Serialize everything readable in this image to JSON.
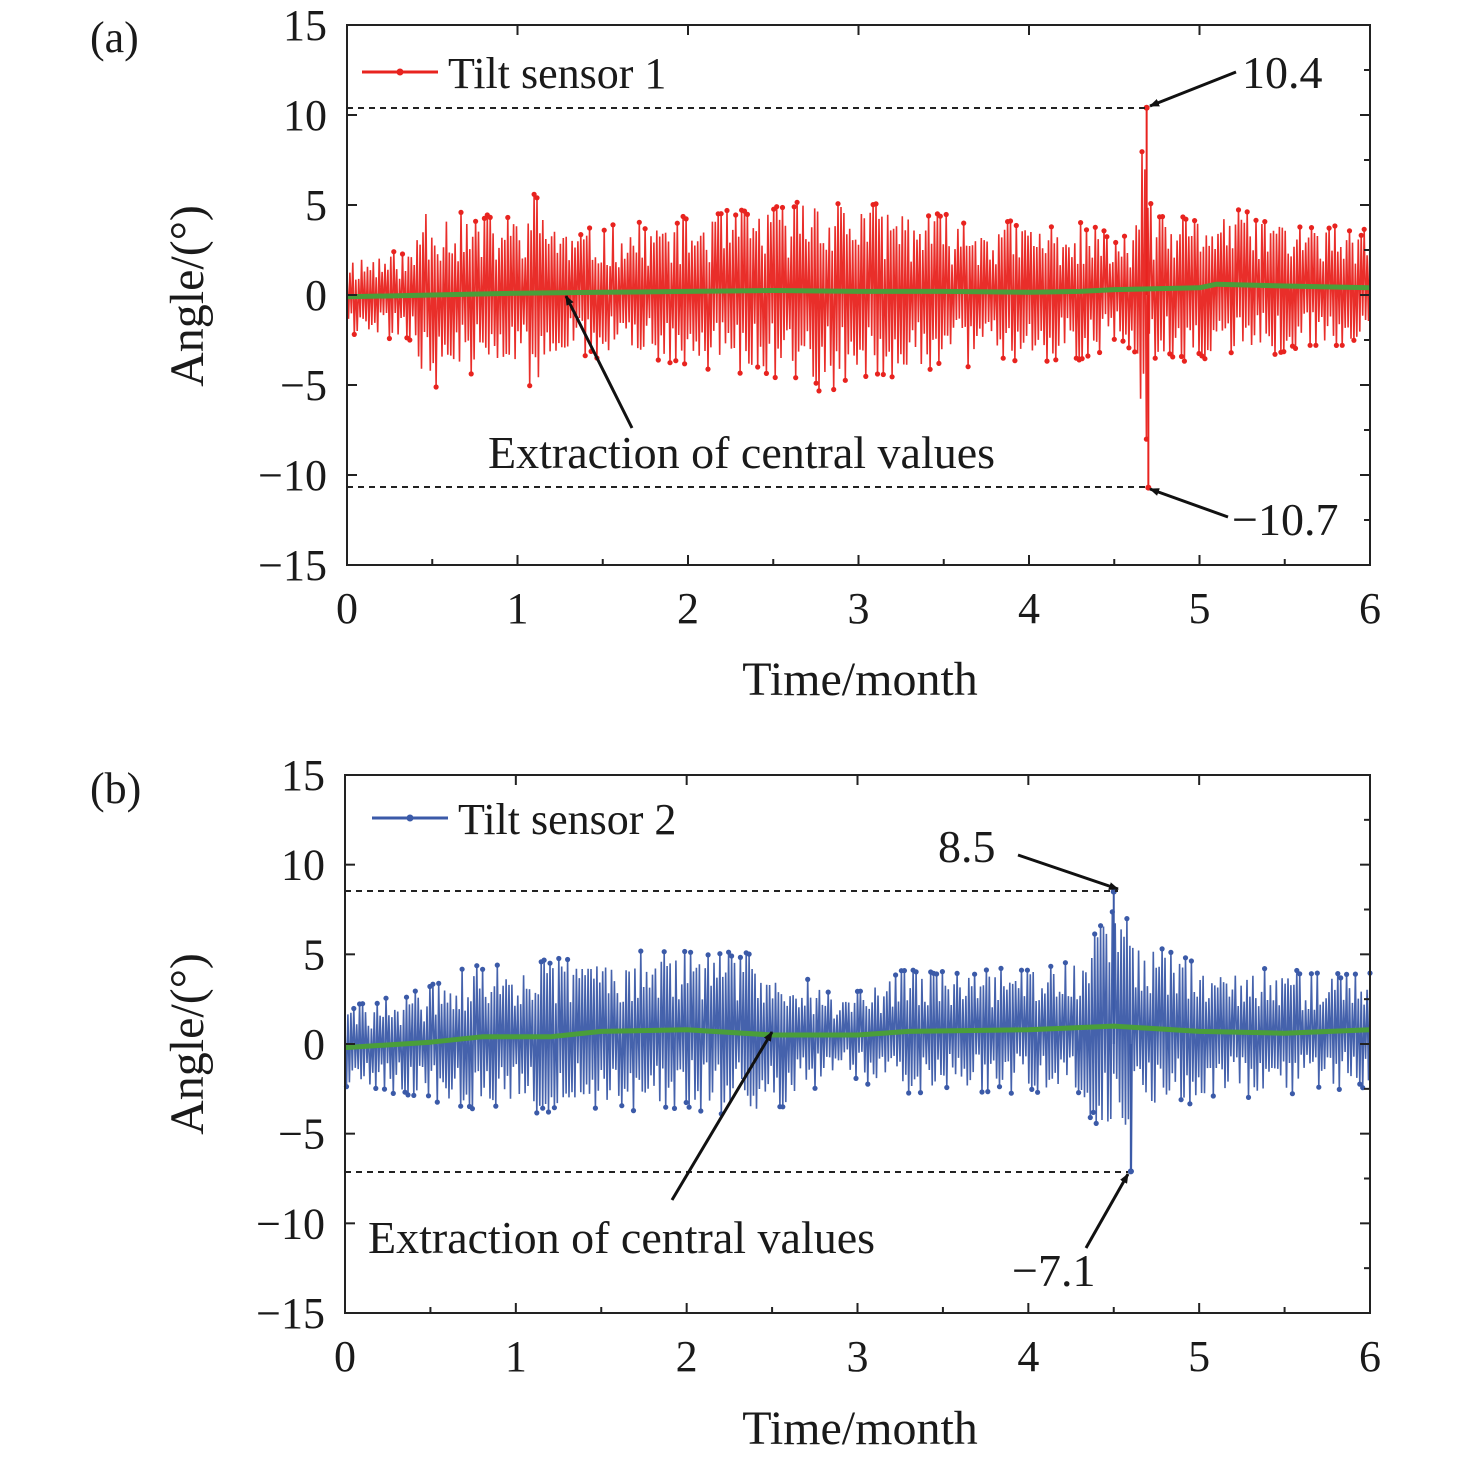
{
  "chart_data": [
    {
      "panel_label": "(a)",
      "type": "line",
      "xlabel": "Time/month",
      "ylabel": "Angle/(°)",
      "xlim": [
        0,
        6
      ],
      "ylim": [
        -15,
        15
      ],
      "xticks": [
        0,
        1,
        2,
        3,
        4,
        5,
        6
      ],
      "yticks": [
        15,
        10,
        5,
        0,
        -5,
        -10,
        -15
      ],
      "ytick_labels": [
        "15",
        "10",
        "5",
        "0",
        "−5",
        "−10",
        "−15"
      ],
      "grid": false,
      "legend_position": "top-left",
      "series": [
        {
          "name": "Tilt sensor 1",
          "color": "#e8231f",
          "kind": "noisy",
          "amplitude_envelope": [
            {
              "x": 0.0,
              "y": 2.3
            },
            {
              "x": 0.4,
              "y": 2.6
            },
            {
              "x": 0.42,
              "y": 5.5
            },
            {
              "x": 0.7,
              "y": 4.5
            },
            {
              "x": 1.0,
              "y": 4.5
            },
            {
              "x": 1.1,
              "y": 5.8
            },
            {
              "x": 1.3,
              "y": 3.5
            },
            {
              "x": 2.0,
              "y": 4.2
            },
            {
              "x": 2.6,
              "y": 5.0
            },
            {
              "x": 2.7,
              "y": 5.8
            },
            {
              "x": 3.0,
              "y": 5.2
            },
            {
              "x": 3.1,
              "y": 5.0
            },
            {
              "x": 3.6,
              "y": 4.2
            },
            {
              "x": 4.4,
              "y": 3.8
            },
            {
              "x": 4.5,
              "y": 2.8
            },
            {
              "x": 4.62,
              "y": 3.5
            },
            {
              "x": 4.68,
              "y": 10.4
            },
            {
              "x": 4.72,
              "y": 4.0
            },
            {
              "x": 5.2,
              "y": 4.2
            },
            {
              "x": 6.0,
              "y": 3.2
            }
          ],
          "peaks": [
            {
              "x": 4.69,
              "y": 10.4
            },
            {
              "x": 4.7,
              "y": -10.7
            }
          ]
        },
        {
          "name": "",
          "color": "#4a9e3a",
          "kind": "central",
          "x": [
            0,
            0.5,
            1.0,
            1.5,
            2.0,
            2.5,
            3.0,
            3.5,
            4.0,
            4.3,
            4.5,
            5.0,
            5.1,
            5.5,
            6.0
          ],
          "y": [
            -0.1,
            0.0,
            0.1,
            0.15,
            0.2,
            0.25,
            0.2,
            0.2,
            0.15,
            0.2,
            0.3,
            0.4,
            0.6,
            0.5,
            0.4
          ]
        }
      ],
      "annotations": [
        {
          "text": "10.4",
          "value": 10.4
        },
        {
          "text": "−10.7",
          "value": -10.7
        },
        {
          "text": "Extraction of central values"
        }
      ]
    },
    {
      "panel_label": "(b)",
      "type": "line",
      "xlabel": "Time/month",
      "ylabel": "Angle/(°)",
      "xlim": [
        0,
        6
      ],
      "ylim": [
        -15,
        15
      ],
      "xticks": [
        0,
        1,
        2,
        3,
        4,
        5,
        6
      ],
      "yticks": [
        15,
        10,
        5,
        0,
        -5,
        -10,
        -15
      ],
      "ytick_labels": [
        "15",
        "10",
        "5",
        "0",
        "−5",
        "−10",
        "−15"
      ],
      "grid": false,
      "legend_position": "top-left",
      "series": [
        {
          "name": "Tilt sensor 2",
          "color": "#3b5aa8",
          "kind": "noisy",
          "amplitude_envelope": [
            {
              "x": 0.0,
              "y": 2.3
            },
            {
              "x": 0.4,
              "y": 3.0
            },
            {
              "x": 0.7,
              "y": 4.0
            },
            {
              "x": 1.2,
              "y": 4.5
            },
            {
              "x": 2.0,
              "y": 4.5
            },
            {
              "x": 2.5,
              "y": 4.8
            },
            {
              "x": 2.9,
              "y": 2.0
            },
            {
              "x": 3.2,
              "y": 3.5
            },
            {
              "x": 3.5,
              "y": 3.5
            },
            {
              "x": 4.0,
              "y": 3.6
            },
            {
              "x": 4.3,
              "y": 4.0
            },
            {
              "x": 4.45,
              "y": 6.5
            },
            {
              "x": 4.55,
              "y": 7.2
            },
            {
              "x": 4.7,
              "y": 5.0
            },
            {
              "x": 5.0,
              "y": 4.0
            },
            {
              "x": 6.0,
              "y": 3.2
            }
          ],
          "peaks": [
            {
              "x": 4.5,
              "y": 8.5
            },
            {
              "x": 4.6,
              "y": -7.1
            }
          ]
        },
        {
          "name": "",
          "color": "#4a9e3a",
          "kind": "central",
          "x": [
            0,
            0.5,
            0.8,
            1.2,
            1.5,
            2.0,
            2.5,
            3.0,
            3.3,
            4.0,
            4.5,
            5.0,
            5.5,
            6.0
          ],
          "y": [
            -0.2,
            0.1,
            0.4,
            0.4,
            0.7,
            0.8,
            0.5,
            0.5,
            0.7,
            0.8,
            1.0,
            0.7,
            0.6,
            0.8
          ]
        }
      ],
      "annotations": [
        {
          "text": "8.5",
          "value": 8.5
        },
        {
          "text": "−7.1",
          "value": -7.1
        },
        {
          "text": "Extraction of central values"
        }
      ]
    }
  ]
}
